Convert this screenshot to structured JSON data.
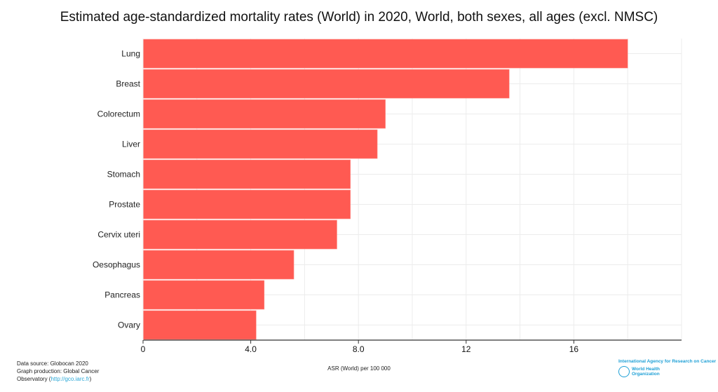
{
  "chart_data": {
    "type": "bar",
    "orientation": "horizontal",
    "title": "Estimated age-standardized mortality rates (World) in 2020, World, both sexes, all ages (excl. NMSC)",
    "categories": [
      "Lung",
      "Breast",
      "Colorectum",
      "Liver",
      "Stomach",
      "Prostate",
      "Cervix uteri",
      "Oesophagus",
      "Pancreas",
      "Ovary"
    ],
    "values": [
      18.0,
      13.6,
      9.0,
      8.7,
      7.7,
      7.7,
      7.2,
      5.6,
      4.5,
      4.2
    ],
    "xlabel": "ASR (World) per 100 000",
    "ylabel": "",
    "xlim": [
      0,
      20
    ],
    "xticks": [
      0,
      4,
      8,
      12,
      16
    ],
    "xtick_labels": [
      "0",
      "4.0",
      "8.0",
      "12",
      "16"
    ],
    "grid": true,
    "bar_color": "#ff5a52"
  },
  "footer": {
    "line1": "Data source: Globocan 2020",
    "line2": "Graph production: Global Cancer",
    "line3_prefix": "Observatory (",
    "link": "http://gco.iarc.fr",
    "line3_suffix": ")"
  },
  "logos": {
    "iarc": "International Agency for Research on Cancer",
    "who_line1": "World Health",
    "who_line2": "Organization"
  }
}
